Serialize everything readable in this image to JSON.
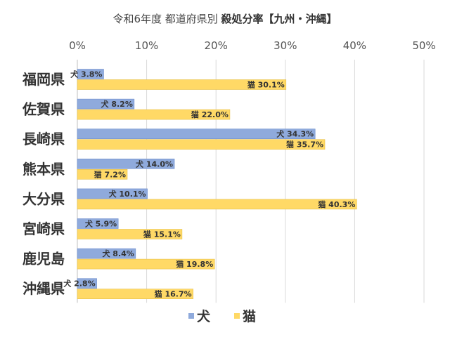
{
  "chart_data": {
    "type": "bar",
    "orientation": "horizontal",
    "title": "令和6年度 都道府県別 殺処分率【九州・沖縄】",
    "title_parts": [
      "令和6年度 都道府県別 ",
      "殺処分率【九州・沖縄】"
    ],
    "categories": [
      "福岡県",
      "佐賀県",
      "長崎県",
      "熊本県",
      "大分県",
      "宮崎県",
      "鹿児島",
      "沖縄県"
    ],
    "series": [
      {
        "name": "犬",
        "color": "#8faadc",
        "values": [
          3.8,
          8.2,
          34.3,
          14.0,
          10.1,
          5.9,
          8.4,
          2.8
        ],
        "labels": [
          "犬 3.8%",
          "犬 8.2%",
          "犬 34.3%",
          "犬 14.0%",
          "犬 10.1%",
          "犬 5.9%",
          "犬 8.4%",
          "犬 2.8%"
        ]
      },
      {
        "name": "猫",
        "color": "#ffd966",
        "values": [
          30.1,
          22.0,
          35.7,
          7.2,
          40.3,
          15.1,
          19.8,
          16.7
        ],
        "labels": [
          "猫 30.1%",
          "猫 22.0%",
          "猫 35.7%",
          "猫 7.2%",
          "猫 40.3%",
          "猫 15.1%",
          "猫 19.8%",
          "猫 16.7%"
        ]
      }
    ],
    "xlim": [
      0,
      50
    ],
    "xticks": [
      "0%",
      "10%",
      "20%",
      "30%",
      "40%",
      "50%"
    ],
    "axis_position": "top",
    "grid": true,
    "legend_position": "bottom"
  }
}
